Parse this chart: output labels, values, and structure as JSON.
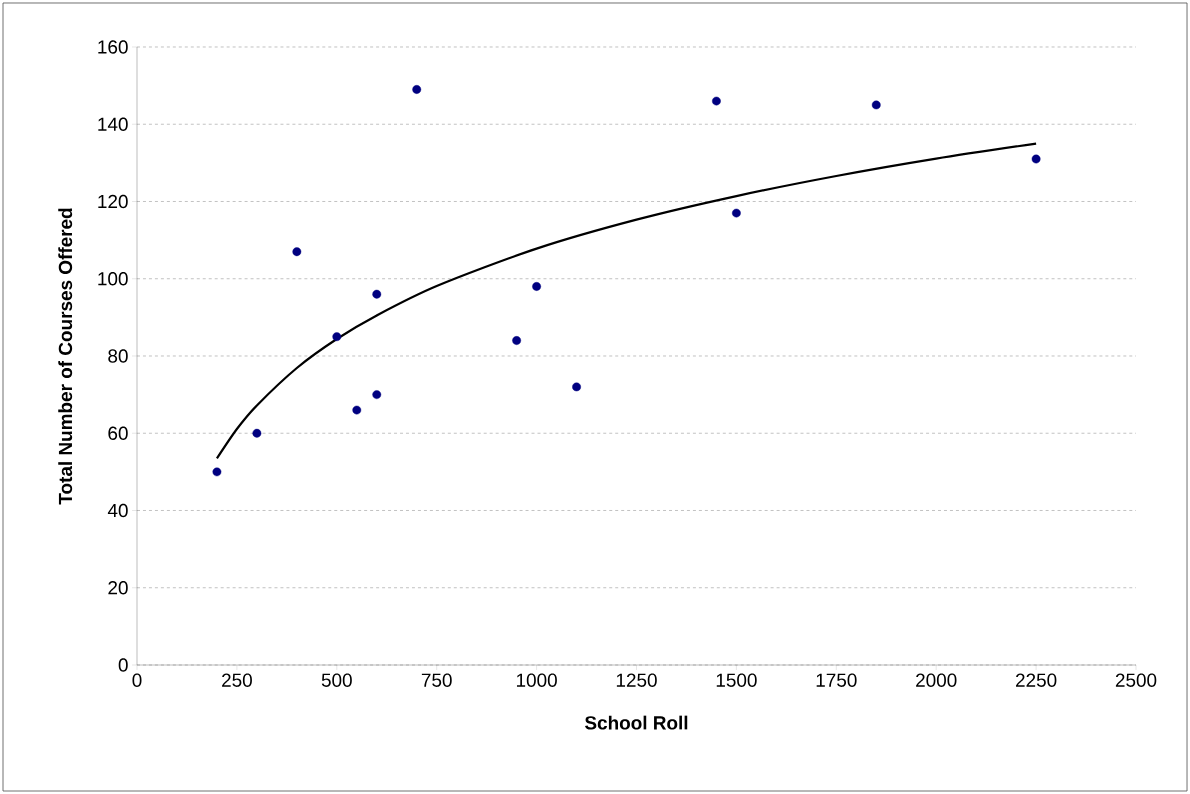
{
  "chart_data": {
    "type": "scatter",
    "xlabel": "School Roll",
    "ylabel": "Total Number of Courses Offered",
    "xlim": [
      0,
      2500
    ],
    "xticks": [
      0,
      250,
      500,
      750,
      1000,
      1250,
      1500,
      1750,
      2000,
      2250,
      2500
    ],
    "ylim": [
      0,
      160
    ],
    "yticks": [
      0,
      20,
      40,
      60,
      80,
      100,
      120,
      140,
      160
    ],
    "grid": "y",
    "marker": "circle",
    "series": [
      {
        "color": "#000080",
        "x": [
          200,
          300,
          400,
          500,
          550,
          600,
          600,
          700,
          950,
          1000,
          1100,
          1450,
          1500,
          1850,
          2250
        ],
        "values": [
          50,
          60,
          107,
          85,
          66,
          96,
          70,
          149,
          84,
          98,
          72,
          146,
          117,
          145,
          131
        ]
      },
      {
        "type": "line",
        "color": "#000000",
        "marker": "none",
        "line_style": "solid",
        "x": [
          200,
          250,
          300,
          400,
          500,
          600,
          750,
          1000,
          1250,
          1500,
          1750,
          2000,
          2250
        ],
        "values": [
          53.5,
          61.1,
          67.2,
          76.9,
          84.4,
          90.5,
          98.1,
          107.8,
          115.3,
          121.4,
          126.6,
          131.1,
          135
        ]
      }
    ]
  }
}
